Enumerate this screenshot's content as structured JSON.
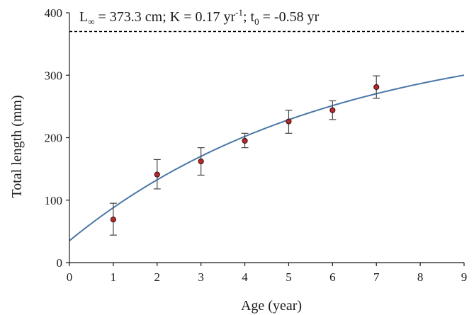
{
  "chart_data": {
    "type": "scatter",
    "title": "",
    "xlabel": "Age (year)",
    "ylabel": "Total length (mm)",
    "xlim": [
      0,
      9
    ],
    "ylim": [
      0,
      400
    ],
    "x_ticks": [
      0,
      1,
      2,
      3,
      4,
      5,
      6,
      7,
      8,
      9
    ],
    "y_ticks": [
      0,
      100,
      200,
      300,
      400
    ],
    "grid": false,
    "annotation": {
      "L_inf_prefix": "L",
      "L_inf_sub": "∞",
      "L_inf_value": " = 373.3 cm; K = 0.17 yr",
      "K_sup": "-1",
      "t0_prefix": "; t",
      "t0_sub": "0",
      "t0_value": " = -0.58 yr"
    },
    "asymptote": {
      "y": 370,
      "style": "dashed",
      "color": "#000000"
    },
    "fitted_curve": {
      "model": "von Bertalanffy",
      "L_inf": 373.3,
      "K": 0.17,
      "t0": -0.58,
      "x_range": [
        0,
        9
      ],
      "color": "#4a78a8"
    },
    "points": [
      {
        "x": 1,
        "y": 69,
        "err_low": 44,
        "err_high": 95
      },
      {
        "x": 2,
        "y": 141,
        "err_low": 118,
        "err_high": 165
      },
      {
        "x": 3,
        "y": 162,
        "err_low": 140,
        "err_high": 184
      },
      {
        "x": 4,
        "y": 195,
        "err_low": 184,
        "err_high": 207
      },
      {
        "x": 5,
        "y": 226,
        "err_low": 207,
        "err_high": 244
      },
      {
        "x": 6,
        "y": 244,
        "err_low": 229,
        "err_high": 259
      },
      {
        "x": 7,
        "y": 281,
        "err_low": 263,
        "err_high": 299
      }
    ],
    "marker_fill": "#b02a2a",
    "marker_stroke": "#3a0d0d",
    "errorbar_color": "#444444"
  }
}
